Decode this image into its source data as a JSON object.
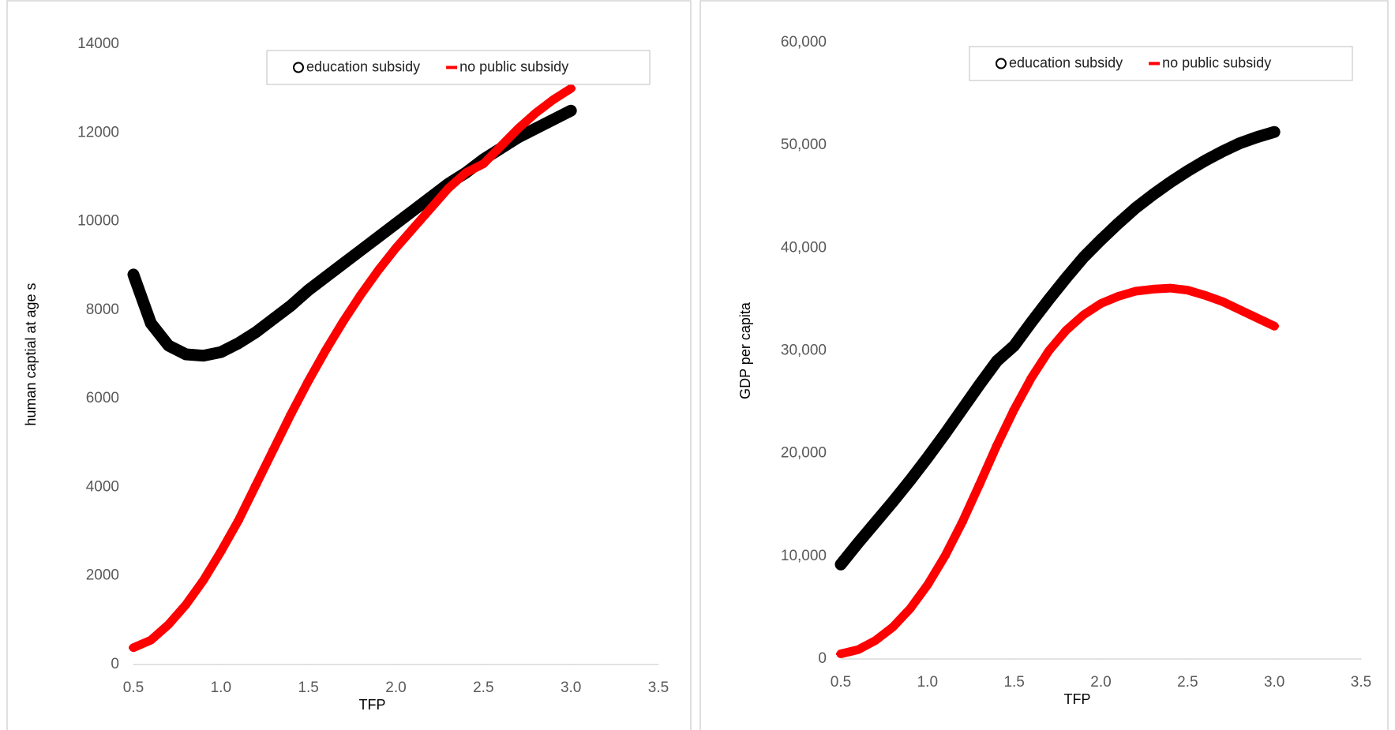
{
  "chart_data": [
    {
      "type": "scatter",
      "x_label": "TFP",
      "y_label": "human captial at age s",
      "x": [
        0.5,
        0.6,
        0.7,
        0.8,
        0.9,
        1.0,
        1.1,
        1.2,
        1.3,
        1.4,
        1.5,
        1.6,
        1.7,
        1.8,
        1.9,
        2.0,
        2.1,
        2.2,
        2.3,
        2.4,
        2.5,
        2.6,
        2.7,
        2.8,
        2.9,
        3.0
      ],
      "series": [
        {
          "name": "education subsidy",
          "color": "#000000",
          "marker": "circle",
          "values": [
            8800,
            7700,
            7200,
            7000,
            6970,
            7050,
            7250,
            7500,
            7800,
            8100,
            8450,
            8750,
            9050,
            9350,
            9650,
            9950,
            10250,
            10550,
            10850,
            11100,
            11400,
            11650,
            11900,
            12100,
            12300,
            12500
          ]
        },
        {
          "name": "no public subsidy",
          "color": "#ff0000",
          "marker": "dash",
          "values": [
            380,
            550,
            900,
            1350,
            1900,
            2550,
            3250,
            4050,
            4850,
            5650,
            6400,
            7100,
            7750,
            8350,
            8900,
            9400,
            9850,
            10300,
            10750,
            11100,
            11300,
            11700,
            12100,
            12450,
            12750,
            13000
          ]
        }
      ],
      "xlim": [
        0.5,
        3.5
      ],
      "xticks": [
        0.5,
        {
          "value": 1.0,
          "label": "1.0"
        },
        1.5,
        {
          "value": 2.0,
          "label": "2.0"
        },
        2.5,
        {
          "value": 3.0,
          "label": "3.0"
        },
        3.5
      ],
      "ylim": [
        0,
        14000
      ],
      "yticks": [
        0,
        2000,
        4000,
        6000,
        8000,
        10000,
        12000,
        14000
      ],
      "grid": false,
      "legend": "top-right"
    },
    {
      "type": "scatter",
      "x_label": "TFP",
      "y_label": "GDP per capita",
      "x": [
        0.5,
        0.6,
        0.7,
        0.8,
        0.9,
        1.0,
        1.1,
        1.2,
        1.3,
        1.4,
        1.5,
        1.6,
        1.7,
        1.8,
        1.9,
        2.0,
        2.1,
        2.2,
        2.3,
        2.4,
        2.5,
        2.6,
        2.7,
        2.8,
        2.9,
        3.0
      ],
      "series": [
        {
          "name": "education subsidy",
          "color": "#000000",
          "marker": "circle",
          "values": [
            9200,
            11300,
            13300,
            15300,
            17400,
            19600,
            21900,
            24300,
            26700,
            29000,
            30500,
            32800,
            35000,
            37100,
            39100,
            40800,
            42400,
            43900,
            45200,
            46400,
            47500,
            48500,
            49400,
            50200,
            50800,
            51300
          ]
        },
        {
          "name": "no public subsidy",
          "color": "#ff0000",
          "marker": "dash",
          "values": [
            500,
            900,
            1800,
            3100,
            4900,
            7200,
            10000,
            13300,
            17000,
            20800,
            24300,
            27400,
            30000,
            32000,
            33500,
            34600,
            35300,
            35800,
            36000,
            36100,
            35900,
            35400,
            34800,
            34000,
            33200,
            32400
          ]
        }
      ],
      "xlim": [
        0.5,
        3.5
      ],
      "xticks": [
        0.5,
        {
          "value": 1.0,
          "label": "1.0"
        },
        1.5,
        {
          "value": 2.0,
          "label": "2.0"
        },
        2.5,
        {
          "value": 3.0,
          "label": "3.0"
        },
        3.5
      ],
      "ylim": [
        0,
        60000
      ],
      "yticks": [
        0,
        {
          "value": 10000,
          "label": "10,000"
        },
        {
          "value": 20000,
          "label": "20,000"
        },
        {
          "value": 30000,
          "label": "30,000"
        },
        {
          "value": 40000,
          "label": "40,000"
        },
        {
          "value": 50000,
          "label": "50,000"
        },
        {
          "value": 60000,
          "label": "60,000"
        }
      ],
      "grid": false,
      "legend": "top-right"
    }
  ]
}
